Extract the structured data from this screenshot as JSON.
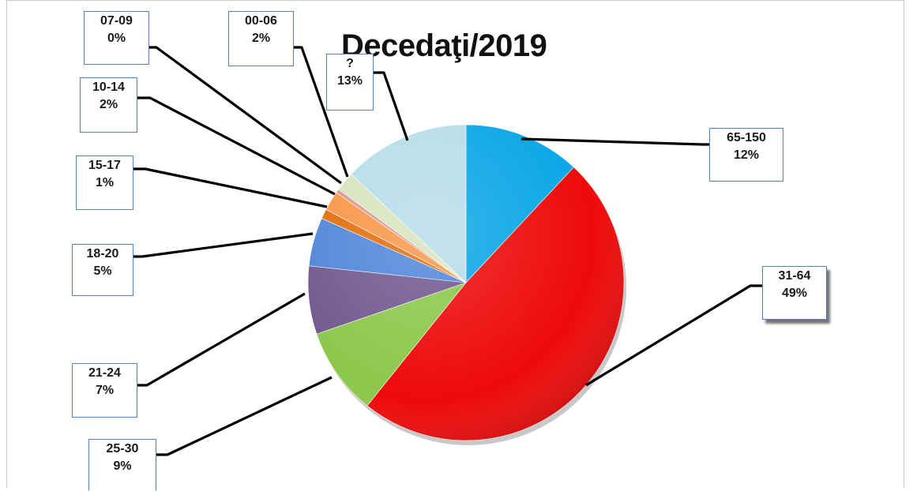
{
  "chart_data": {
    "type": "pie",
    "title": "Decedaţi/2019",
    "slices": [
      {
        "label": "65-150",
        "value": 12,
        "pct_text": "12%",
        "color": "#0aa6e6"
      },
      {
        "label": "31-64",
        "value": 49,
        "pct_text": "49%",
        "color": "#ee0a0a"
      },
      {
        "label": "25-30",
        "value": 9,
        "pct_text": "9%",
        "color": "#8cc84b"
      },
      {
        "label": "21-24",
        "value": 7,
        "pct_text": "7%",
        "color": "#71588f"
      },
      {
        "label": "18-20",
        "value": 5,
        "pct_text": "5%",
        "color": "#4f86d9"
      },
      {
        "label": "15-17",
        "value": 1,
        "pct_text": "1%",
        "color": "#e36c0a"
      },
      {
        "label": "10-14",
        "value": 2,
        "pct_text": "2%",
        "color": "#f79646"
      },
      {
        "label": "07-09",
        "value": 0.4,
        "pct_text": "0%",
        "color": "#d99694"
      },
      {
        "label": "00-06",
        "value": 2,
        "pct_text": "2%",
        "color": "#d7e4bd"
      },
      {
        "label": "?",
        "value": 13,
        "pct_text": "13%",
        "color": "#b7dde8"
      }
    ]
  }
}
